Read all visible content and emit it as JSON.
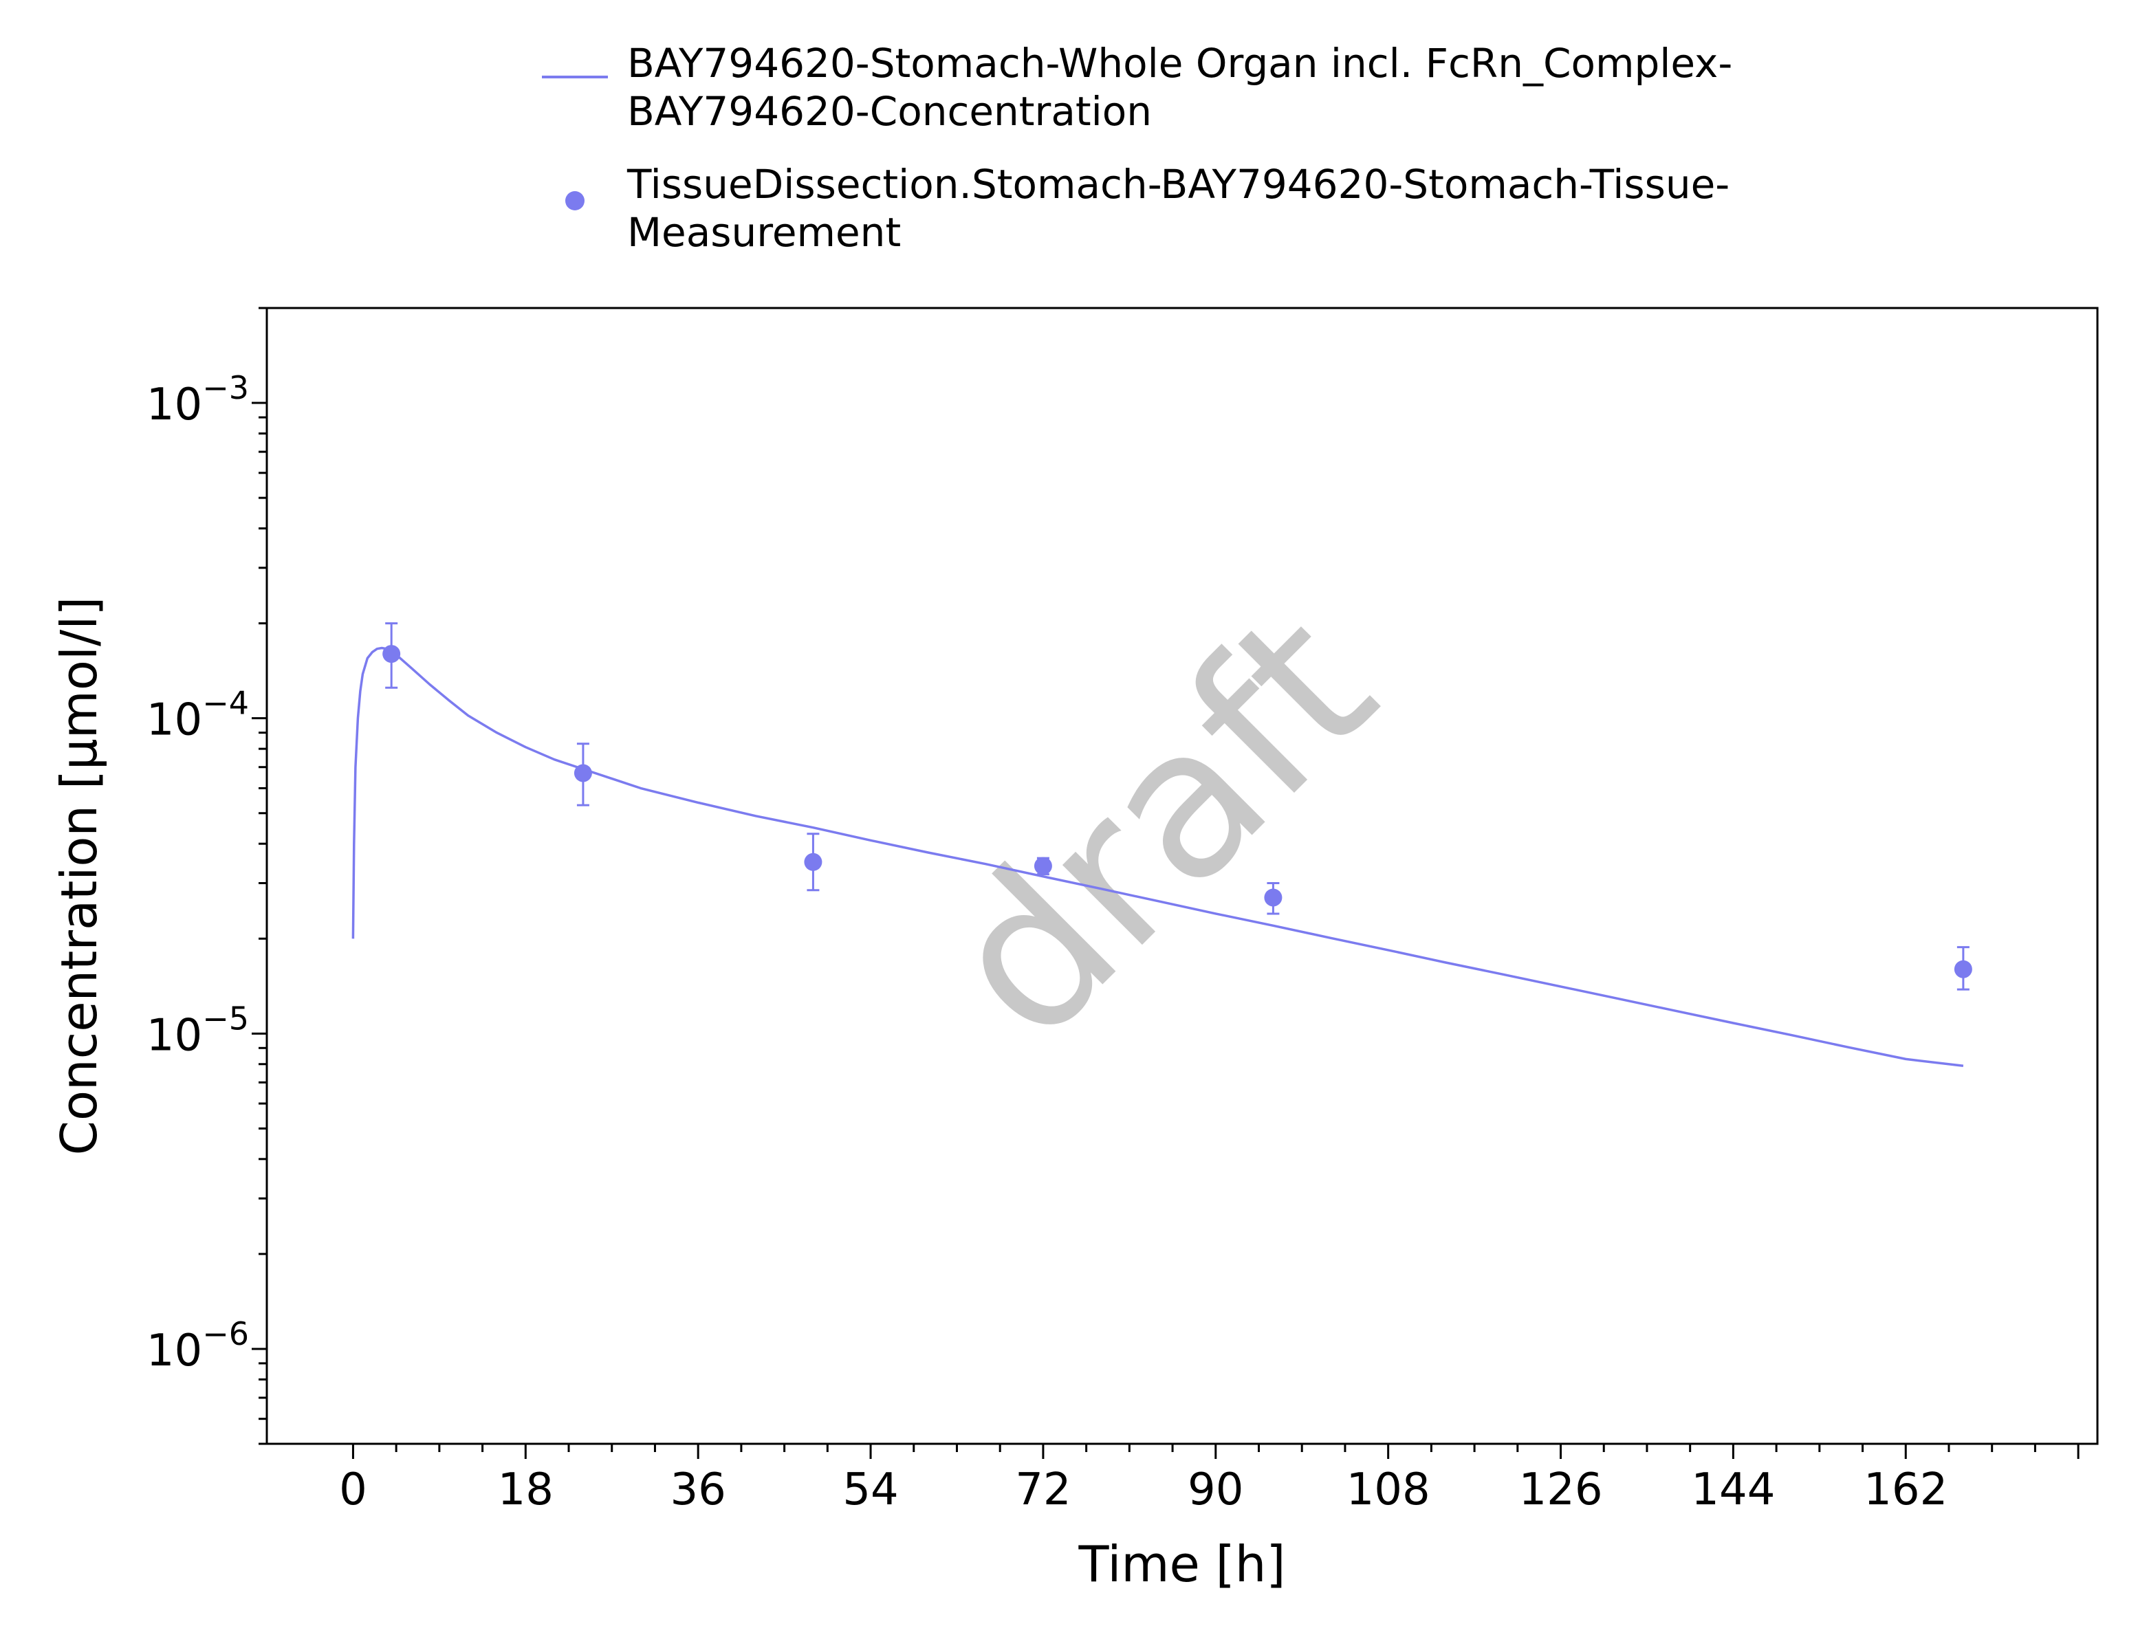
{
  "chart_data": {
    "type": "line",
    "title": "",
    "xlabel": "Time [h]",
    "ylabel": "Concentration [µmol/l]",
    "xlim": [
      -9,
      182
    ],
    "ylim": [
      5e-07,
      0.002
    ],
    "yscale": "log",
    "x_ticks": [
      0,
      18,
      36,
      54,
      72,
      90,
      108,
      126,
      144,
      162
    ],
    "x_tick_labels": [
      "0",
      "18",
      "36",
      "54",
      "72",
      "90",
      "108",
      "126",
      "144",
      "162"
    ],
    "y_ticks": [
      1e-06,
      1e-05,
      0.0001,
      0.001
    ],
    "y_tick_labels": [
      {
        "base": "10",
        "exp": "−6"
      },
      {
        "base": "10",
        "exp": "−5"
      },
      {
        "base": "10",
        "exp": "−4"
      },
      {
        "base": "10",
        "exp": "−3"
      }
    ],
    "grid": false,
    "legend_position": "top",
    "watermark": "draft",
    "series": [
      {
        "name_lines": [
          "BAY794620-Stomach-Whole Organ incl. FcRn_Complex-",
          "BAY794620-Concentration"
        ],
        "kind": "line",
        "color": "#7b7bef",
        "x": [
          0,
          0.1,
          0.25,
          0.5,
          0.75,
          1,
          1.5,
          2,
          2.5,
          3,
          3.5,
          4,
          6,
          8,
          10,
          12,
          15,
          18,
          21,
          24,
          30,
          36,
          42,
          48,
          54,
          60,
          66,
          72,
          78,
          84,
          90,
          96,
          102,
          108,
          114,
          120,
          126,
          132,
          138,
          144,
          150,
          156,
          162,
          168
        ],
        "y": [
          2e-05,
          4e-05,
          7e-05,
          0.0001,
          0.000122,
          0.000138,
          0.000155,
          0.000162,
          0.000166,
          0.000167,
          0.000166,
          0.000164,
          0.000145,
          0.000128,
          0.000114,
          0.000102,
          9e-05,
          8.1e-05,
          7.4e-05,
          6.9e-05,
          6e-05,
          5.4e-05,
          4.9e-05,
          4.5e-05,
          4.1e-05,
          3.75e-05,
          3.45e-05,
          3.15e-05,
          2.88e-05,
          2.63e-05,
          2.4e-05,
          2.2e-05,
          2.01e-05,
          1.84e-05,
          1.68e-05,
          1.54e-05,
          1.41e-05,
          1.29e-05,
          1.18e-05,
          1.08e-05,
          9.9e-06,
          9.05e-06,
          8.3e-06,
          7.9e-06
        ]
      },
      {
        "name_lines": [
          "TissueDissection.Stomach-BAY794620-Stomach-Tissue-",
          "Measurement"
        ],
        "kind": "scatter",
        "color": "#7b7bef",
        "x": [
          4,
          24,
          48,
          72,
          96,
          168
        ],
        "y": [
          0.00016,
          6.7e-05,
          3.5e-05,
          3.4e-05,
          2.7e-05,
          1.6e-05
        ],
        "y_low": [
          0.000125,
          5.3e-05,
          2.85e-05,
          3.2e-05,
          2.4e-05,
          1.38e-05
        ],
        "y_high": [
          0.0002,
          8.3e-05,
          4.3e-05,
          3.6e-05,
          3e-05,
          1.88e-05
        ]
      }
    ]
  }
}
